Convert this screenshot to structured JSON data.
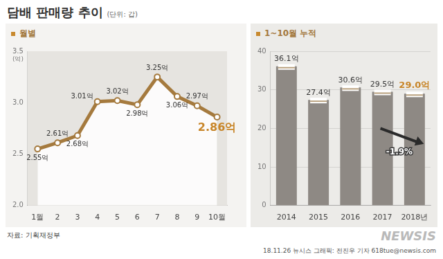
{
  "title": "담배 판매량 추이",
  "subtitle": "(단위: 갑)",
  "source": "자료: 기획재정부",
  "footer": "18.11.26 뉴시스 그래픽: 전진우 기자 618tue@newsis.com",
  "watermark": "NEWSIS",
  "chart_data": [
    {
      "type": "line",
      "title": "월별",
      "categories": [
        "1월",
        "2",
        "3",
        "4",
        "5",
        "6",
        "7",
        "8",
        "9",
        "10월"
      ],
      "values": [
        2.55,
        2.61,
        2.68,
        3.01,
        3.02,
        2.98,
        3.25,
        3.06,
        2.97,
        2.86
      ],
      "value_labels": [
        "2.55억",
        "2.61억",
        "2.68억",
        "3.01억",
        "3.02억",
        "2.98억",
        "3.25억",
        "3.06억",
        "2.97억",
        "2.86억"
      ],
      "color": "#a57a3e",
      "marker": "circle",
      "ylabel": "(억)",
      "ylim": [
        2,
        3.5
      ],
      "yticks": [
        {
          "value": 2,
          "label": "2.0"
        },
        2.5,
        {
          "value": 3,
          "label": "3.0"
        },
        3.5
      ],
      "grid": true,
      "data_labels": true
    },
    {
      "type": "bar",
      "title": "1~10월 누적",
      "categories": [
        "2014",
        "2015",
        "2016",
        "2017",
        "2018년"
      ],
      "values": [
        36.1,
        27.4,
        30.6,
        29.5,
        29.0
      ],
      "value_labels": [
        "36.1억",
        "27.4억",
        "30.6억",
        "29.5억",
        "29.0억"
      ],
      "color": "#8e8984",
      "ylim": [
        0,
        40
      ],
      "yticks": [
        0,
        10,
        20,
        30,
        40
      ],
      "grid": true,
      "data_labels": true,
      "annotations": [
        {
          "text": "-1.9%"
        }
      ]
    }
  ]
}
